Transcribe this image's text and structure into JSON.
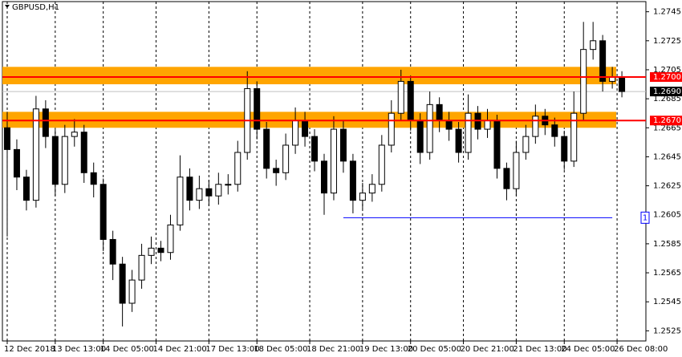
{
  "chart_data": {
    "type": "candlestick",
    "title": "GBPUSD,H1",
    "open": [
      1.2665,
      1.265,
      1.2631,
      1.2615,
      1.2678,
      1.2659,
      1.2626,
      1.2659,
      1.2662,
      1.2634,
      1.2626,
      1.2588,
      1.2571,
      1.2544,
      1.256,
      1.2577,
      1.2582,
      1.2579,
      1.2598,
      1.2631,
      1.2615,
      1.2623,
      1.2618,
      1.2626,
      1.2626,
      1.2648,
      1.2692,
      1.2664,
      1.2637,
      1.2634,
      1.2653,
      1.267,
      1.2659,
      1.2642,
      1.262,
      1.2664,
      1.2642,
      1.2615,
      1.262,
      1.2626,
      1.2653,
      1.2675,
      1.2697,
      1.267,
      1.2648,
      1.2681,
      1.267,
      1.2664,
      1.2648,
      1.2675,
      1.2664,
      1.267,
      1.2637,
      1.2623,
      1.2648,
      1.2659,
      1.2673,
      1.2667,
      1.2659,
      1.2642,
      1.2675,
      1.2719,
      1.2725,
      1.2697,
      1.27
    ],
    "high": [
      1.2676,
      1.2657,
      1.2636,
      1.2687,
      1.2684,
      1.2664,
      1.2667,
      1.2671,
      1.2667,
      1.2641,
      1.263,
      1.2594,
      1.2576,
      1.2567,
      1.2585,
      1.259,
      1.2587,
      1.2605,
      1.2646,
      1.2637,
      1.2632,
      1.2629,
      1.2634,
      1.2633,
      1.2656,
      1.2704,
      1.2697,
      1.2669,
      1.2643,
      1.2661,
      1.2679,
      1.2676,
      1.2664,
      1.2647,
      1.2673,
      1.267,
      1.2647,
      1.2627,
      1.2633,
      1.266,
      1.2684,
      1.2705,
      1.2701,
      1.2675,
      1.269,
      1.2686,
      1.2676,
      1.2669,
      1.2688,
      1.268,
      1.2678,
      1.2674,
      1.2641,
      1.2656,
      1.2667,
      1.2681,
      1.2678,
      1.2672,
      1.2663,
      1.269,
      1.2738,
      1.2738,
      1.2729,
      1.2707,
      1.2704
    ],
    "low": [
      1.259,
      1.2622,
      1.2608,
      1.261,
      1.2651,
      1.2618,
      1.262,
      1.2652,
      1.2627,
      1.2617,
      1.258,
      1.256,
      1.2528,
      1.2538,
      1.2554,
      1.2571,
      1.2573,
      1.2574,
      1.2594,
      1.2608,
      1.2609,
      1.2611,
      1.2612,
      1.2619,
      1.2621,
      1.2643,
      1.2657,
      1.263,
      1.2625,
      1.2629,
      1.2647,
      1.2652,
      1.2635,
      1.2605,
      1.2615,
      1.2634,
      1.2606,
      1.2609,
      1.2614,
      1.2621,
      1.2648,
      1.267,
      1.2663,
      1.264,
      1.2643,
      1.2662,
      1.2656,
      1.2641,
      1.2643,
      1.2657,
      1.2658,
      1.263,
      1.2615,
      1.2618,
      1.2643,
      1.2654,
      1.266,
      1.2652,
      1.2636,
      1.2638,
      1.267,
      1.2712,
      1.269,
      1.2692,
      1.2686
    ],
    "close": [
      1.265,
      1.2631,
      1.2615,
      1.2678,
      1.2659,
      1.2626,
      1.2659,
      1.2662,
      1.2634,
      1.2626,
      1.2588,
      1.2571,
      1.2544,
      1.256,
      1.2577,
      1.2582,
      1.2579,
      1.2598,
      1.2631,
      1.2615,
      1.2623,
      1.2618,
      1.2626,
      1.2626,
      1.2648,
      1.2692,
      1.2664,
      1.2637,
      1.2634,
      1.2653,
      1.267,
      1.2659,
      1.2642,
      1.262,
      1.2664,
      1.2642,
      1.2615,
      1.262,
      1.2626,
      1.2653,
      1.2675,
      1.2697,
      1.267,
      1.2648,
      1.2681,
      1.267,
      1.2664,
      1.2648,
      1.2675,
      1.2664,
      1.267,
      1.2637,
      1.2623,
      1.2648,
      1.2659,
      1.2673,
      1.2667,
      1.2659,
      1.2642,
      1.2675,
      1.2719,
      1.2725,
      1.2697,
      1.27,
      1.269
    ],
    "up_color": "#ffffff",
    "down_color": "#000000",
    "xlim": [
      -0.5,
      66.5
    ],
    "xticks": [
      {
        "value": 0,
        "label": "12 Dec 2018"
      },
      {
        "value": 5,
        "label": "13 Dec 13:00"
      },
      {
        "value": 10,
        "label": "14 Dec 05:00"
      },
      {
        "value": 15.5,
        "label": "14 Dec 21:00"
      },
      {
        "value": 21,
        "label": "17 Dec 13:00"
      },
      {
        "value": 26,
        "label": "18 Dec 05:00"
      },
      {
        "value": 31.5,
        "label": "18 Dec 21:00"
      },
      {
        "value": 37,
        "label": "19 Dec 13:00"
      },
      {
        "value": 42,
        "label": "20 Dec 05:00"
      },
      {
        "value": 47.5,
        "label": "20 Dec 21:00"
      },
      {
        "value": 53,
        "label": "21 Dec 13:00"
      },
      {
        "value": 58,
        "label": "24 Dec 05:00"
      },
      {
        "value": 63.5,
        "label": "26 Dec 08:00"
      }
    ],
    "ylim": [
      1.2518,
      1.2752
    ],
    "yticks": [
      1.2525,
      1.2545,
      1.2565,
      1.2585,
      1.2605,
      1.2625,
      1.2645,
      1.2665,
      1.2685,
      1.2705,
      1.2725,
      1.2745
    ],
    "grid": true,
    "levels": [
      {
        "value": 1.27,
        "label": "1.2700",
        "color": "#ff0000",
        "band": [
          1.2695,
          1.2707
        ],
        "band_color": "#ffa500"
      },
      {
        "value": 1.267,
        "label": "1.2670",
        "color": "#ff0000",
        "band": [
          1.2665,
          1.2676
        ],
        "band_color": "#ffa500"
      }
    ],
    "last_price": {
      "value": 1.269,
      "label": "1.2690"
    },
    "trendline": {
      "value": 1.2603,
      "x": [
        35,
        63
      ],
      "label": "1",
      "color": "#0000ff"
    }
  }
}
